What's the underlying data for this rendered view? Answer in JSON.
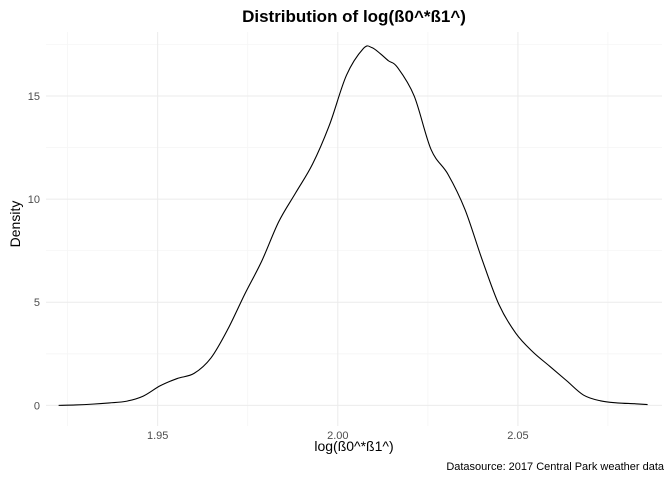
{
  "chart_data": {
    "type": "line",
    "title": "Distribution of log(ß0^*ß1^)",
    "xlabel": "log(ß0^*ß1^)",
    "ylabel": "Density",
    "caption": "Datasource: 2017 Central Park weather data",
    "xlim": [
      1.919,
      2.09
    ],
    "ylim": [
      -1.0,
      18.1
    ],
    "x_ticks": [
      1.95,
      2.0,
      2.05
    ],
    "x_tick_labels": [
      "1.95",
      "2.00",
      "2.05"
    ],
    "x_minor": [
      1.925,
      1.975,
      2.025,
      2.075
    ],
    "y_ticks": [
      0,
      5,
      10,
      15
    ],
    "y_tick_labels": [
      "0",
      "5",
      "10",
      "15"
    ],
    "y_minor": [
      2.5,
      7.5,
      12.5,
      17.5
    ],
    "grid": true,
    "series": [
      {
        "x": [
          1.9225,
          1.9272,
          1.9319,
          1.9366,
          1.9413,
          1.946,
          1.9507,
          1.9554,
          1.9601,
          1.9648,
          1.9695,
          1.9742,
          1.9789,
          1.9836,
          1.9883,
          1.993,
          1.9977,
          2.0024,
          2.0071,
          2.0094,
          2.0118,
          2.0141,
          2.0165,
          2.0212,
          2.0259,
          2.0306,
          2.0353,
          2.04,
          2.0447,
          2.0494,
          2.0541,
          2.0588,
          2.0635,
          2.0682,
          2.0729,
          2.0776,
          2.0823,
          2.086
        ],
        "values": [
          0.0,
          0.02,
          0.06,
          0.12,
          0.2,
          0.45,
          0.95,
          1.3,
          1.55,
          2.3,
          3.7,
          5.4,
          7.0,
          8.9,
          10.3,
          11.7,
          13.6,
          16.0,
          17.3,
          17.35,
          17.05,
          16.7,
          16.4,
          15.0,
          12.4,
          11.2,
          9.5,
          7.1,
          4.9,
          3.5,
          2.6,
          1.9,
          1.2,
          0.5,
          0.22,
          0.12,
          0.08,
          0.04
        ]
      }
    ]
  }
}
